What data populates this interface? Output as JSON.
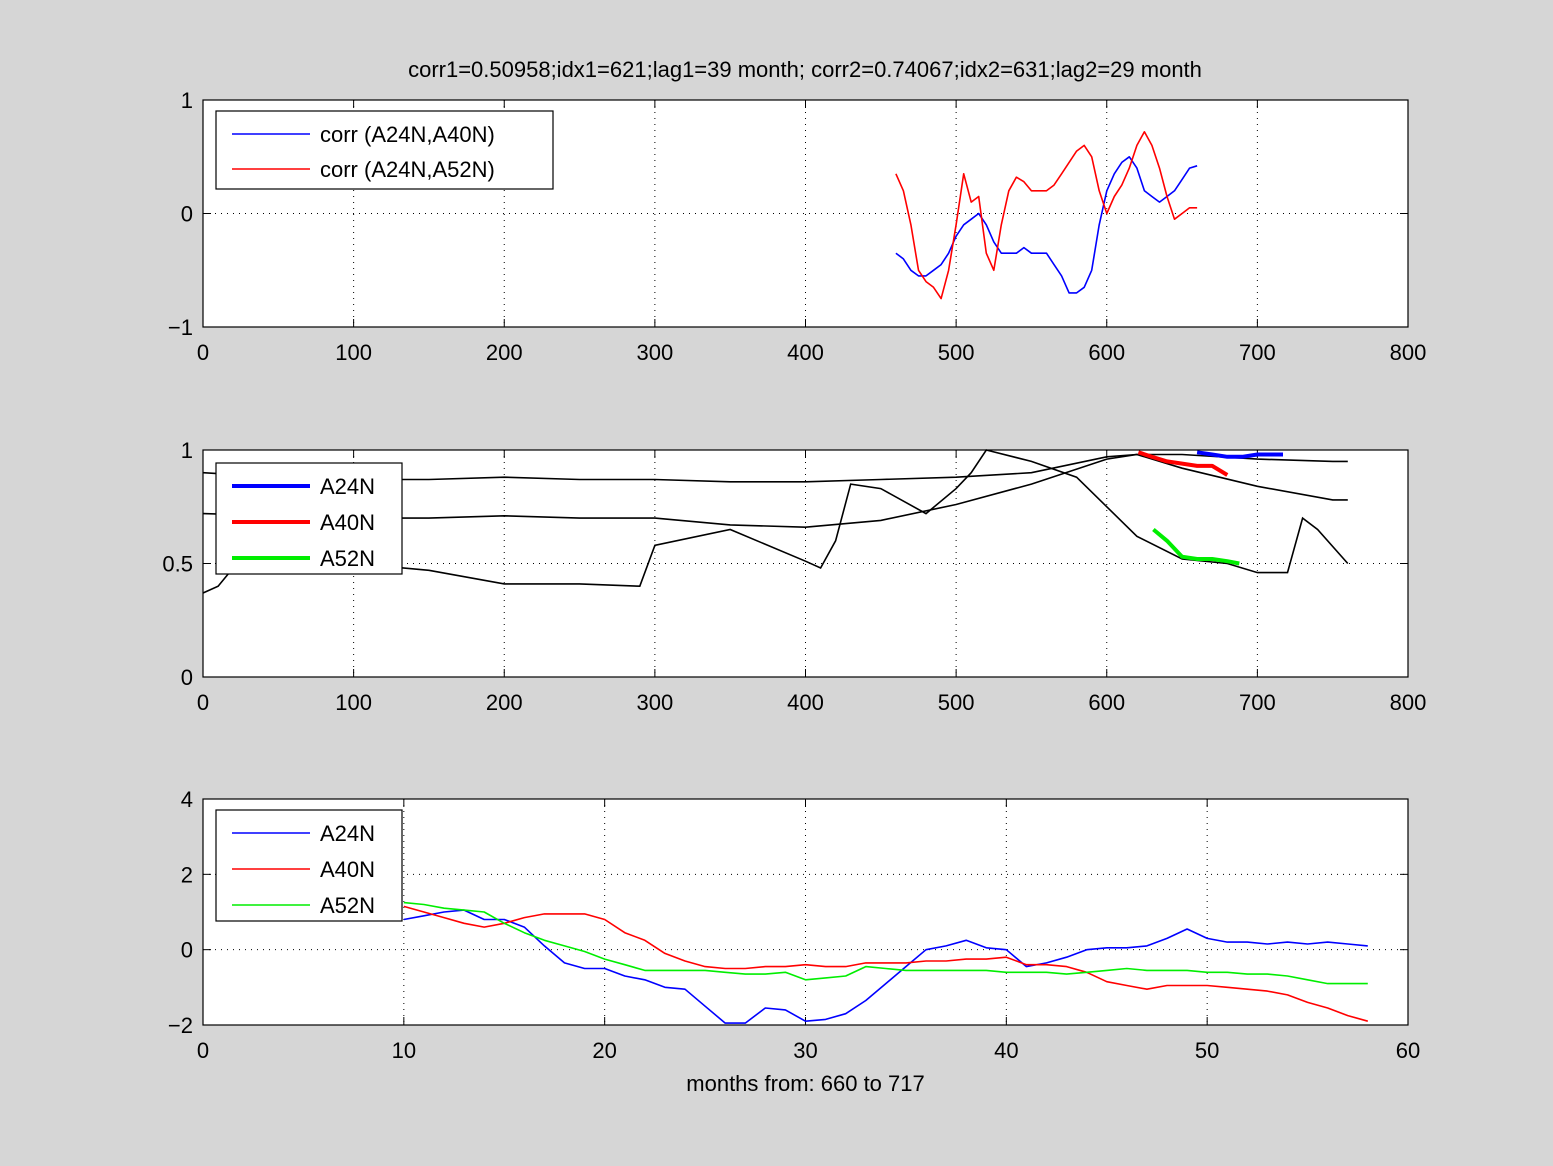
{
  "figure": {
    "title": "corr1=0.50958;idx1=621;lag1=39 month;   corr2=0.74067;idx2=631;lag2=29 month",
    "background": "#d6d6d6"
  },
  "chart_data": [
    {
      "type": "line",
      "xlim": [
        0,
        800
      ],
      "ylim": [
        -1,
        1
      ],
      "xticks": [
        "0",
        "100",
        "200",
        "300",
        "400",
        "500",
        "600",
        "700",
        "800"
      ],
      "yticks": [
        "−1",
        "0",
        "1"
      ],
      "grid": true,
      "legend_position": "top-left",
      "series": [
        {
          "name": "corr (A24N,A40N)",
          "color": "#0000ff",
          "x": [
            460,
            465,
            470,
            475,
            480,
            485,
            490,
            495,
            500,
            505,
            510,
            515,
            520,
            525,
            530,
            535,
            540,
            545,
            550,
            555,
            560,
            565,
            570,
            575,
            580,
            585,
            590,
            595,
            600,
            605,
            610,
            615,
            620,
            625,
            630,
            635,
            640,
            645,
            650,
            655,
            660
          ],
          "y": [
            -0.35,
            -0.4,
            -0.5,
            -0.55,
            -0.55,
            -0.5,
            -0.45,
            -0.35,
            -0.2,
            -0.1,
            -0.05,
            0.0,
            -0.1,
            -0.25,
            -0.35,
            -0.35,
            -0.35,
            -0.3,
            -0.35,
            -0.35,
            -0.35,
            -0.45,
            -0.55,
            -0.7,
            -0.7,
            -0.65,
            -0.5,
            -0.1,
            0.2,
            0.35,
            0.45,
            0.5,
            0.4,
            0.2,
            0.15,
            0.1,
            0.15,
            0.2,
            0.3,
            0.4,
            0.42
          ]
        },
        {
          "name": "corr (A24N,A52N)",
          "color": "#ff0000",
          "x": [
            460,
            465,
            470,
            475,
            480,
            485,
            490,
            495,
            500,
            505,
            510,
            515,
            520,
            525,
            530,
            535,
            540,
            545,
            550,
            555,
            560,
            565,
            570,
            575,
            580,
            585,
            590,
            595,
            600,
            605,
            610,
            615,
            620,
            625,
            630,
            635,
            640,
            645,
            650,
            655,
            660
          ],
          "y": [
            0.35,
            0.2,
            -0.1,
            -0.5,
            -0.6,
            -0.65,
            -0.75,
            -0.5,
            -0.1,
            0.35,
            0.1,
            0.15,
            -0.35,
            -0.5,
            -0.1,
            0.2,
            0.32,
            0.28,
            0.2,
            0.2,
            0.2,
            0.25,
            0.35,
            0.45,
            0.55,
            0.6,
            0.5,
            0.2,
            0.0,
            0.15,
            0.25,
            0.4,
            0.6,
            0.72,
            0.6,
            0.4,
            0.15,
            -0.05,
            0.0,
            0.05,
            0.05
          ]
        }
      ]
    },
    {
      "type": "line",
      "xlim": [
        0,
        800
      ],
      "ylim": [
        0,
        1
      ],
      "xticks": [
        "0",
        "100",
        "200",
        "300",
        "400",
        "500",
        "600",
        "700",
        "800"
      ],
      "yticks": [
        "0",
        "0.5",
        "1"
      ],
      "grid": true,
      "legend_position": "top-left",
      "background_series": [
        {
          "color": "#000000",
          "x": [
            0,
            50,
            100,
            150,
            200,
            250,
            300,
            350,
            400,
            450,
            500,
            550,
            600,
            620,
            650,
            700,
            750,
            760
          ],
          "y": [
            0.9,
            0.88,
            0.87,
            0.87,
            0.88,
            0.87,
            0.87,
            0.86,
            0.86,
            0.87,
            0.88,
            0.9,
            0.97,
            0.98,
            0.98,
            0.96,
            0.95,
            0.95
          ]
        },
        {
          "color": "#000000",
          "x": [
            0,
            50,
            100,
            150,
            200,
            250,
            300,
            350,
            400,
            450,
            500,
            550,
            600,
            620,
            650,
            700,
            750,
            760
          ],
          "y": [
            0.72,
            0.71,
            0.7,
            0.7,
            0.71,
            0.7,
            0.7,
            0.67,
            0.66,
            0.69,
            0.76,
            0.85,
            0.96,
            0.98,
            0.92,
            0.84,
            0.78,
            0.78
          ]
        },
        {
          "color": "#000000",
          "x": [
            0,
            10,
            20,
            50,
            100,
            150,
            200,
            250,
            290,
            300,
            350,
            400,
            410,
            420,
            430,
            450,
            480,
            500,
            510,
            520,
            550,
            580,
            600,
            620,
            650,
            680,
            700,
            720,
            730,
            740,
            760
          ],
          "y": [
            0.37,
            0.4,
            0.48,
            0.5,
            0.5,
            0.47,
            0.41,
            0.41,
            0.4,
            0.58,
            0.65,
            0.51,
            0.48,
            0.6,
            0.85,
            0.83,
            0.72,
            0.83,
            0.9,
            1.0,
            0.95,
            0.88,
            0.75,
            0.62,
            0.52,
            0.5,
            0.46,
            0.46,
            0.7,
            0.65,
            0.5
          ]
        }
      ],
      "series": [
        {
          "name": "A24N",
          "color": "#0000ff",
          "x": [
            660,
            670,
            680,
            690,
            700,
            710,
            717
          ],
          "y": [
            0.99,
            0.98,
            0.97,
            0.97,
            0.98,
            0.98,
            0.98
          ]
        },
        {
          "name": "A40N",
          "color": "#ff0000",
          "x": [
            621,
            630,
            640,
            650,
            660,
            670,
            680
          ],
          "y": [
            0.99,
            0.97,
            0.95,
            0.94,
            0.93,
            0.93,
            0.89
          ]
        },
        {
          "name": "A52N",
          "color": "#00ee00",
          "x": [
            631,
            640,
            650,
            660,
            670,
            680,
            688
          ],
          "y": [
            0.65,
            0.6,
            0.53,
            0.52,
            0.52,
            0.51,
            0.5
          ]
        }
      ]
    },
    {
      "type": "line",
      "xlim": [
        0,
        60
      ],
      "ylim": [
        -2,
        4
      ],
      "xticks": [
        "0",
        "10",
        "20",
        "30",
        "40",
        "50",
        "60"
      ],
      "yticks": [
        "−2",
        "0",
        "2",
        "4"
      ],
      "xlabel": "months from: 660 to 717",
      "grid": true,
      "legend_position": "top-left",
      "series": [
        {
          "name": "A24N",
          "color": "#0000ff",
          "x": [
            10,
            11,
            12,
            13,
            14,
            15,
            16,
            17,
            18,
            19,
            20,
            21,
            22,
            23,
            24,
            25,
            26,
            27,
            28,
            29,
            30,
            31,
            32,
            33,
            34,
            35,
            36,
            37,
            38,
            39,
            40,
            41,
            42,
            43,
            44,
            45,
            46,
            47,
            48,
            49,
            50,
            51,
            52,
            53,
            54,
            55,
            56,
            57,
            58
          ],
          "y": [
            0.8,
            0.9,
            1.0,
            1.05,
            0.8,
            0.8,
            0.6,
            0.1,
            -0.35,
            -0.5,
            -0.5,
            -0.7,
            -0.8,
            -1.0,
            -1.05,
            -1.5,
            -1.95,
            -1.95,
            -1.55,
            -1.6,
            -1.9,
            -1.85,
            -1.7,
            -1.35,
            -0.9,
            -0.45,
            0.0,
            0.1,
            0.25,
            0.05,
            0.0,
            -0.45,
            -0.35,
            -0.2,
            0.0,
            0.05,
            0.05,
            0.1,
            0.3,
            0.55,
            0.3,
            0.2,
            0.2,
            0.15,
            0.2,
            0.15,
            0.2,
            0.15,
            0.1
          ]
        },
        {
          "name": "A40N",
          "color": "#ff0000",
          "x": [
            10,
            11,
            12,
            13,
            14,
            15,
            16,
            17,
            18,
            19,
            20,
            21,
            22,
            23,
            24,
            25,
            26,
            27,
            28,
            29,
            30,
            31,
            32,
            33,
            34,
            35,
            36,
            37,
            38,
            39,
            40,
            41,
            42,
            43,
            44,
            45,
            46,
            47,
            48,
            49,
            50,
            51,
            52,
            53,
            54,
            55,
            56,
            57,
            58
          ],
          "y": [
            1.15,
            1.0,
            0.85,
            0.7,
            0.6,
            0.7,
            0.85,
            0.95,
            0.95,
            0.95,
            0.8,
            0.45,
            0.25,
            -0.1,
            -0.3,
            -0.45,
            -0.5,
            -0.5,
            -0.45,
            -0.45,
            -0.4,
            -0.45,
            -0.45,
            -0.35,
            -0.35,
            -0.35,
            -0.3,
            -0.3,
            -0.25,
            -0.25,
            -0.2,
            -0.4,
            -0.4,
            -0.45,
            -0.6,
            -0.85,
            -0.95,
            -1.05,
            -0.95,
            -0.95,
            -0.95,
            -1.0,
            -1.05,
            -1.1,
            -1.2,
            -1.4,
            -1.55,
            -1.75,
            -1.9
          ]
        },
        {
          "name": "A52N",
          "color": "#00ee00",
          "x": [
            10,
            11,
            12,
            13,
            14,
            15,
            16,
            17,
            18,
            19,
            20,
            21,
            22,
            23,
            24,
            25,
            26,
            27,
            28,
            29,
            30,
            31,
            32,
            33,
            34,
            35,
            36,
            37,
            38,
            39,
            40,
            41,
            42,
            43,
            44,
            45,
            46,
            47,
            48,
            49,
            50,
            51,
            52,
            53,
            54,
            55,
            56,
            57,
            58
          ],
          "y": [
            1.25,
            1.2,
            1.1,
            1.05,
            1.0,
            0.7,
            0.45,
            0.25,
            0.1,
            -0.05,
            -0.25,
            -0.4,
            -0.55,
            -0.55,
            -0.55,
            -0.55,
            -0.6,
            -0.65,
            -0.65,
            -0.6,
            -0.8,
            -0.75,
            -0.7,
            -0.45,
            -0.5,
            -0.55,
            -0.55,
            -0.55,
            -0.55,
            -0.55,
            -0.6,
            -0.6,
            -0.6,
            -0.65,
            -0.6,
            -0.55,
            -0.5,
            -0.55,
            -0.55,
            -0.55,
            -0.6,
            -0.6,
            -0.65,
            -0.65,
            -0.7,
            -0.8,
            -0.9,
            -0.9,
            -0.9
          ]
        }
      ]
    }
  ]
}
